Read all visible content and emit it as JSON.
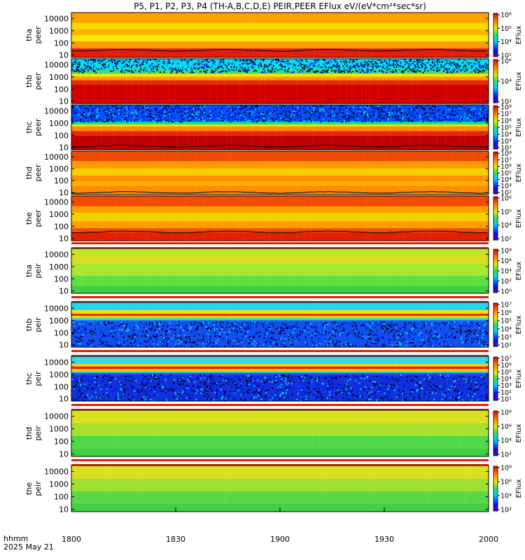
{
  "title": "P5, P1, P2, P3, P4 (TH-A,B,C,D,E) PEIR,PEER EFlux eV/(eV*cm²*sec*sr)",
  "colorbar_label": "EFlux",
  "bottom_axis": {
    "row1_label": "hhmm",
    "row2_label": "2025 May 21",
    "ticks": [
      "1800",
      "1830",
      "1900",
      "1930",
      "2000"
    ]
  },
  "chart_data": [
    {
      "type": "heatmap",
      "probe": "tha",
      "instrument": "peer",
      "ylabel_line1": "tha",
      "ylabel_line2": "peer",
      "yticks": [
        "10",
        "100",
        "1000",
        "10000"
      ],
      "cbar_ticks": [
        "10²",
        "10⁴",
        "10⁵",
        "10⁶"
      ],
      "style": "hot",
      "bands": [
        {
          "e": 10,
          "c": "#e61e05"
        },
        {
          "e": 22,
          "c": "#e61e05"
        },
        {
          "e": 40,
          "c": "#ff9a00"
        },
        {
          "e": 150,
          "c": "#f5e800"
        },
        {
          "e": 500,
          "c": "#ffb300"
        },
        {
          "e": 1500,
          "c": "#f4dc00"
        },
        {
          "e": 5000,
          "c": "#ffa200"
        },
        {
          "e": 30000,
          "c": "#f23a00"
        }
      ],
      "line_e": 25
    },
    {
      "type": "heatmap",
      "probe": "thb",
      "instrument": "peer",
      "ylabel_line1": "thb",
      "ylabel_line2": "peer",
      "yticks": [
        "10",
        "100",
        "1000",
        "10000"
      ],
      "cbar_ticks": [
        "10²",
        "10⁴",
        "10⁶"
      ],
      "style": "hot",
      "bands": [
        {
          "e": 10,
          "c": "#d00000"
        },
        {
          "e": 250,
          "c": "#e62800"
        },
        {
          "e": 600,
          "c": "#ff9a00"
        },
        {
          "e": 1200,
          "c": "#f5e800"
        },
        {
          "e": 2000,
          "c": "#40e070"
        },
        {
          "e": 5000,
          "c": "#00e0f0"
        },
        {
          "e": 30000,
          "c": "#00c8f0"
        }
      ],
      "noise_above": 2500
    },
    {
      "type": "heatmap",
      "probe": "thc",
      "instrument": "peer",
      "ylabel_line1": "thc",
      "ylabel_line2": "peer",
      "yticks": [
        "10",
        "100",
        "1000",
        "10000"
      ],
      "cbar_ticks": [
        "10²",
        "10³",
        "10⁴",
        "10⁵",
        "10⁶",
        "10⁷",
        "10⁸"
      ],
      "style": "hot",
      "bands": [
        {
          "e": 10,
          "c": "#c00000"
        },
        {
          "e": 100,
          "c": "#e62800"
        },
        {
          "e": 250,
          "c": "#ff8c00"
        },
        {
          "e": 600,
          "c": "#f0e000"
        },
        {
          "e": 900,
          "c": "#00e0a0"
        },
        {
          "e": 1500,
          "c": "#0050ff"
        },
        {
          "e": 30000,
          "c": "#0030e0"
        }
      ],
      "noise_above": 1400,
      "line_e": 13
    },
    {
      "type": "heatmap",
      "probe": "thd",
      "instrument": "peer",
      "ylabel_line1": "thd",
      "ylabel_line2": "peer",
      "yticks": [
        "10",
        "100",
        "1000",
        "10000"
      ],
      "cbar_ticks": [
        "10²",
        "10³",
        "10⁴",
        "10⁵",
        "10⁶",
        "10⁷",
        "10⁸"
      ],
      "style": "hot",
      "bands": [
        {
          "e": 10,
          "c": "#ff8c00"
        },
        {
          "e": 40,
          "c": "#ffb000"
        },
        {
          "e": 100,
          "c": "#ff9000"
        },
        {
          "e": 300,
          "c": "#f4d000"
        },
        {
          "e": 1200,
          "c": "#ff9a00"
        },
        {
          "e": 5000,
          "c": "#f24a00"
        },
        {
          "e": 30000,
          "c": "#e01800"
        }
      ],
      "line_e": 10
    },
    {
      "type": "heatmap",
      "probe": "the",
      "instrument": "peer",
      "ylabel_line1": "the",
      "ylabel_line2": "peer",
      "yticks": [
        "10",
        "100",
        "1000",
        "10000"
      ],
      "cbar_ticks": [
        "10²",
        "10⁴",
        "10⁵",
        "10⁶"
      ],
      "style": "hot",
      "bands": [
        {
          "e": 10,
          "c": "#e61e05"
        },
        {
          "e": 35,
          "c": "#f05000"
        },
        {
          "e": 80,
          "c": "#ff9c00"
        },
        {
          "e": 300,
          "c": "#f6d000"
        },
        {
          "e": 1500,
          "c": "#ff9a00"
        },
        {
          "e": 5000,
          "c": "#f24a00"
        },
        {
          "e": 30000,
          "c": "#e62000"
        }
      ],
      "line_e": 35
    },
    {
      "type": "heatmap",
      "probe": "tha",
      "instrument": "peir",
      "ylabel_line1": "tha",
      "ylabel_line2": "peir",
      "yticks": [
        "10",
        "100",
        "1000",
        "10000"
      ],
      "cbar_ticks": [
        "10⁰",
        "10²",
        "10⁴",
        "10⁶",
        "10⁸"
      ],
      "style": "green",
      "bands": [
        {
          "e": 5,
          "c": "#40d040"
        },
        {
          "e": 30,
          "c": "#60e040"
        },
        {
          "e": 200,
          "c": "#a8e830"
        },
        {
          "e": 2000,
          "c": "#d8e020"
        },
        {
          "e": 8000,
          "c": "#c0e428"
        },
        {
          "e": 30000,
          "c": "#b0e830"
        }
      ],
      "top_strip": true
    },
    {
      "type": "heatmap",
      "probe": "thb",
      "instrument": "peir",
      "ylabel_line1": "thb",
      "ylabel_line2": "peir",
      "yticks": [
        "10",
        "100",
        "1000",
        "10000"
      ],
      "cbar_ticks": [
        "10²",
        "10³",
        "10⁴",
        "10⁵",
        "10⁶",
        "10⁷"
      ],
      "style": "hot",
      "bands": [
        {
          "e": 5,
          "c": "#1050f0"
        },
        {
          "e": 900,
          "c": "#2060f0"
        },
        {
          "e": 1200,
          "c": "#20e0e0"
        },
        {
          "e": 1800,
          "c": "#ffd000"
        },
        {
          "e": 2800,
          "c": "#e62000"
        },
        {
          "e": 4000,
          "c": "#ffe000"
        },
        {
          "e": 8000,
          "c": "#20d8f0"
        },
        {
          "e": 30000,
          "c": "#10c0f0"
        }
      ],
      "noise_below": 900,
      "top_strip": true
    },
    {
      "type": "heatmap",
      "probe": "thc",
      "instrument": "peir",
      "ylabel_line1": "thc",
      "ylabel_line2": "peir",
      "yticks": [
        "10",
        "100",
        "1000",
        "10000"
      ],
      "cbar_ticks": [
        "10¹",
        "10²",
        "10³",
        "10⁴",
        "10⁵",
        "10⁶",
        "10⁷"
      ],
      "style": "hot",
      "bands": [
        {
          "e": 5,
          "c": "#1030e0"
        },
        {
          "e": 1000,
          "c": "#2050f0"
        },
        {
          "e": 1500,
          "c": "#30d0e0"
        },
        {
          "e": 2000,
          "c": "#ffd000"
        },
        {
          "e": 3200,
          "c": "#e62000"
        },
        {
          "e": 5000,
          "c": "#ffd000"
        },
        {
          "e": 8000,
          "c": "#30d8f0"
        },
        {
          "e": 30000,
          "c": "#10c0f0"
        }
      ],
      "noise_below": 1000,
      "top_strip": true
    },
    {
      "type": "heatmap",
      "probe": "thd",
      "instrument": "peir",
      "ylabel_line1": "thd",
      "ylabel_line2": "peir",
      "yticks": [
        "10",
        "100",
        "1000",
        "10000"
      ],
      "cbar_ticks": [
        "10²",
        "10⁴",
        "10⁶",
        "10⁸"
      ],
      "style": "green",
      "bands": [
        {
          "e": 5,
          "c": "#40d040"
        },
        {
          "e": 30,
          "c": "#50d848"
        },
        {
          "e": 300,
          "c": "#a8e030"
        },
        {
          "e": 3000,
          "c": "#d8e020"
        },
        {
          "e": 30000,
          "c": "#c8e428"
        }
      ],
      "top_strip": true
    },
    {
      "type": "heatmap",
      "probe": "the",
      "instrument": "peir",
      "ylabel_line1": "the",
      "ylabel_line2": "peir",
      "yticks": [
        "10",
        "100",
        "1000",
        "10000"
      ],
      "cbar_ticks": [
        "10²",
        "10⁴",
        "10⁶",
        "10⁸"
      ],
      "style": "green",
      "bands": [
        {
          "e": 5,
          "c": "#40d040"
        },
        {
          "e": 30,
          "c": "#58d848"
        },
        {
          "e": 300,
          "c": "#a0e030"
        },
        {
          "e": 3000,
          "c": "#d8e020"
        },
        {
          "e": 30000,
          "c": "#c8e428"
        }
      ],
      "top_strip": true
    }
  ]
}
